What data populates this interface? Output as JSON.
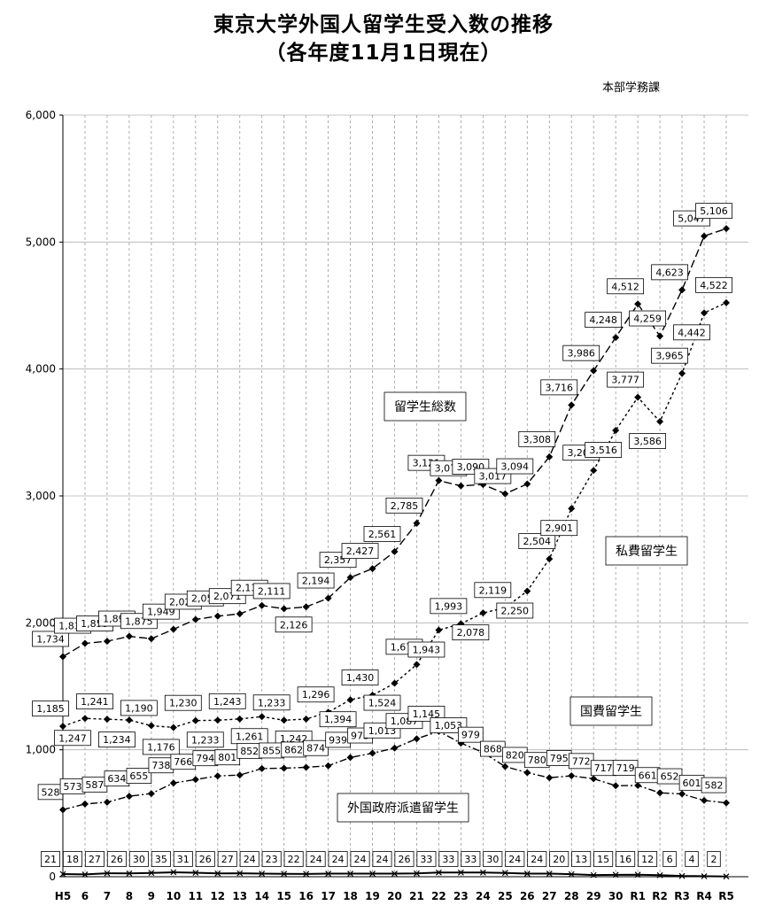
{
  "title_line1": "東京大学外国人留学生受入数の推移",
  "title_line2": "（各年度11月1日現在）",
  "office": "本部学務課",
  "chart_data": {
    "type": "line",
    "categories": [
      "H5",
      "6",
      "7",
      "8",
      "9",
      "10",
      "11",
      "12",
      "13",
      "14",
      "15",
      "16",
      "17",
      "18",
      "19",
      "20",
      "21",
      "22",
      "23",
      "24",
      "25",
      "26",
      "27",
      "28",
      "29",
      "30",
      "R1",
      "R2",
      "R3",
      "R4",
      "R5"
    ],
    "ylim": [
      0,
      6000
    ],
    "yticks": [
      "0",
      "1,000",
      "2,000",
      "3,000",
      "4,000",
      "5,000",
      "6,000"
    ],
    "grid": "vertical dashed",
    "series": [
      {
        "name": "留学生総数",
        "style": "long-dash",
        "values": [
          1734,
          1838,
          1855,
          1894,
          1875,
          1949,
          2027,
          2053,
          2071,
          2137,
          2111,
          2126,
          2194,
          2357,
          2427,
          2561,
          2785,
          3121,
          3079,
          3090,
          3017,
          3094,
          3308,
          3716,
          3986,
          4248,
          4512,
          4259,
          4623,
          5047,
          5106
        ],
        "labels": [
          "1,734",
          "1,838",
          "1,855",
          "1,894",
          "1,875",
          "1,949",
          "2,027",
          "2,053",
          "2,071",
          "2,137",
          "2,111",
          "2,126",
          "2,194",
          "2,357",
          "2,427",
          "2,561",
          "2,785",
          "3,121",
          "3,079",
          "3,090",
          "3,017",
          "3,094",
          "3,308",
          "3,716",
          "3,986",
          "4,248",
          "4,512",
          "4,259",
          "4,623",
          "5,047",
          "5,106"
        ]
      },
      {
        "name": "私費留学生",
        "style": "short-dash",
        "values": [
          1185,
          1247,
          1241,
          1234,
          1190,
          1176,
          1230,
          1233,
          1243,
          1261,
          1233,
          1242,
          1296,
          1394,
          1430,
          1524,
          1672,
          1943,
          1993,
          2078,
          2119,
          2250,
          2504,
          2901,
          3201,
          3516,
          3777,
          3586,
          3965,
          4442,
          4522
        ],
        "labels": [
          "1,185",
          "1,247",
          "1,241",
          "1,234",
          "1,190",
          "1,176",
          "1,230",
          "1,233",
          "1,243",
          "1,261",
          "1,233",
          "1,242",
          "1,296",
          "1,394",
          "1,430",
          "1,524",
          "1,672",
          "1,943",
          "1,993",
          "2,078",
          "2,119",
          "2,250",
          "2,504",
          "2,901",
          "3,201",
          "3,516",
          "3,777",
          "3,586",
          "3,965",
          "4,442",
          "4,522"
        ]
      },
      {
        "name": "国費留学生",
        "style": "dash-dot",
        "values": [
          528,
          573,
          587,
          634,
          655,
          738,
          766,
          794,
          801,
          852,
          855,
          862,
          874,
          939,
          973,
          1013,
          1087,
          1145,
          1053,
          979,
          868,
          820,
          780,
          795,
          772,
          717,
          719,
          661,
          652,
          601,
          582
        ],
        "labels": [
          "528",
          "573",
          "587",
          "634",
          "655",
          "738",
          "766",
          "794",
          "801",
          "852",
          "855",
          "862",
          "874",
          "939",
          "973",
          "1,013",
          "1,087",
          "1,145",
          "1,053",
          "979",
          "868",
          "820",
          "780",
          "795",
          "772",
          "717",
          "719",
          "661",
          "652",
          "601",
          "582"
        ]
      },
      {
        "name": "外国政府派遣留学生",
        "style": "solid",
        "values": [
          21,
          18,
          27,
          26,
          30,
          35,
          31,
          26,
          27,
          24,
          23,
          22,
          24,
          24,
          24,
          24,
          26,
          33,
          33,
          33,
          30,
          24,
          24,
          20,
          13,
          15,
          16,
          12,
          6,
          4,
          2
        ],
        "labels": [
          "21",
          "18",
          "27",
          "26",
          "30",
          "35",
          "31",
          "26",
          "27",
          "24",
          "23",
          "22",
          "24",
          "24",
          "24",
          "24",
          "26",
          "33",
          "33",
          "33",
          "30",
          "24",
          "24",
          "20",
          "13",
          "15",
          "16",
          "12",
          "6",
          "4",
          "2"
        ]
      }
    ]
  }
}
